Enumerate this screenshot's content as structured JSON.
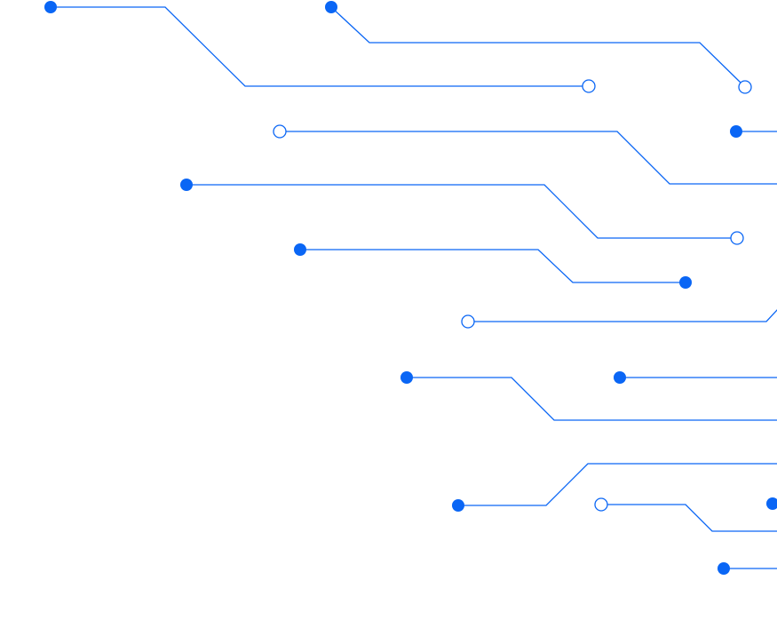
{
  "decoration": {
    "style": "circuit-traces",
    "colors": {
      "trace": "#0a66f5",
      "background": "#ffffff"
    },
    "node_types": [
      "filled-dot",
      "open-circle"
    ]
  }
}
